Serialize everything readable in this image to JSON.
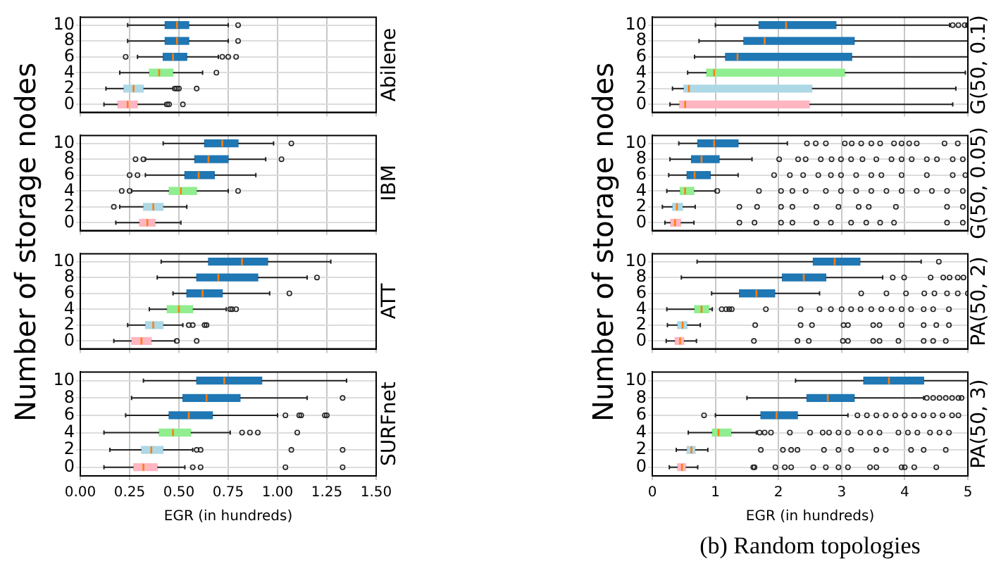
{
  "chart_data": [
    {
      "type": "box",
      "orientation": "horizontal",
      "title": "Abilene",
      "ylabel": "Number of storage nodes",
      "categories": [
        "10",
        "8",
        "6",
        "4",
        "2",
        "0"
      ],
      "colors": [
        "#1f77b4",
        "#1f77b4",
        "#1f77b4",
        "#90ee90",
        "#add8e6",
        "#ffb6c1"
      ],
      "xlim": [
        0,
        1.5
      ],
      "xticks": [
        {
          "value": 0,
          "label": null
        },
        {
          "value": 0.25,
          "label": null
        },
        {
          "value": 0.5,
          "label": null
        },
        {
          "value": 0.75,
          "label": null
        },
        {
          "value": 1,
          "label": null
        },
        {
          "value": 1.25,
          "label": null
        },
        {
          "value": 1.5,
          "label": null
        }
      ],
      "grid": true,
      "tick_labels": "y",
      "boxes": [
        {
          "low": 0.24,
          "q1": 0.43,
          "median": 0.49,
          "q3": 0.55,
          "high": 0.75,
          "outliers": [
            0.8
          ]
        },
        {
          "low": 0.24,
          "q1": 0.43,
          "median": 0.49,
          "q3": 0.55,
          "high": 0.75,
          "outliers": [
            0.8
          ]
        },
        {
          "low": 0.29,
          "q1": 0.42,
          "median": 0.47,
          "q3": 0.54,
          "high": 0.7,
          "outliers": [
            0.23,
            0.72,
            0.75,
            0.79
          ]
        },
        {
          "low": 0.2,
          "q1": 0.35,
          "median": 0.4,
          "q3": 0.47,
          "high": 0.62,
          "outliers": [
            0.69
          ]
        },
        {
          "low": 0.13,
          "q1": 0.22,
          "median": 0.27,
          "q3": 0.32,
          "high": 0.47,
          "outliers": [
            0.48,
            0.49,
            0.5,
            0.59
          ]
        },
        {
          "low": 0.12,
          "q1": 0.19,
          "median": 0.24,
          "q3": 0.29,
          "high": 0.43,
          "outliers": [
            0.44,
            0.45,
            0.52
          ]
        }
      ]
    },
    {
      "type": "box",
      "orientation": "horizontal",
      "title": "IBM",
      "categories": [
        "10",
        "8",
        "6",
        "4",
        "2",
        "0"
      ],
      "colors": [
        "#1f77b4",
        "#1f77b4",
        "#1f77b4",
        "#90ee90",
        "#add8e6",
        "#ffb6c1"
      ],
      "xlim": [
        0,
        1.5
      ],
      "xticks": [
        {
          "value": 0,
          "label": null
        },
        {
          "value": 0.25,
          "label": null
        },
        {
          "value": 0.5,
          "label": null
        },
        {
          "value": 0.75,
          "label": null
        },
        {
          "value": 1,
          "label": null
        },
        {
          "value": 1.25,
          "label": null
        },
        {
          "value": 1.5,
          "label": null
        }
      ],
      "grid": true,
      "tick_labels": "y",
      "boxes": [
        {
          "low": 0.42,
          "q1": 0.63,
          "median": 0.72,
          "q3": 0.8,
          "high": 0.98,
          "outliers": [
            1.07
          ]
        },
        {
          "low": 0.33,
          "q1": 0.58,
          "median": 0.65,
          "q3": 0.75,
          "high": 0.94,
          "outliers": [
            0.28,
            0.32,
            1.02
          ]
        },
        {
          "low": 0.33,
          "q1": 0.53,
          "median": 0.6,
          "q3": 0.68,
          "high": 0.89,
          "outliers": [
            0.25,
            0.29
          ]
        },
        {
          "low": 0.26,
          "q1": 0.45,
          "median": 0.51,
          "q3": 0.59,
          "high": 0.75,
          "outliers": [
            0.21,
            0.25,
            0.8
          ]
        },
        {
          "low": 0.2,
          "q1": 0.32,
          "median": 0.37,
          "q3": 0.42,
          "high": 0.54,
          "outliers": [
            0.17
          ]
        },
        {
          "low": 0.18,
          "q1": 0.3,
          "median": 0.34,
          "q3": 0.38,
          "high": 0.51
        }
      ]
    },
    {
      "type": "box",
      "orientation": "horizontal",
      "title": "ATT",
      "categories": [
        "10",
        "8",
        "6",
        "4",
        "2",
        "0"
      ],
      "colors": [
        "#1f77b4",
        "#1f77b4",
        "#1f77b4",
        "#90ee90",
        "#add8e6",
        "#ffb6c1"
      ],
      "xlim": [
        0,
        1.5
      ],
      "xticks": [
        {
          "value": 0,
          "label": null
        },
        {
          "value": 0.25,
          "label": null
        },
        {
          "value": 0.5,
          "label": null
        },
        {
          "value": 0.75,
          "label": null
        },
        {
          "value": 1,
          "label": null
        },
        {
          "value": 1.25,
          "label": null
        },
        {
          "value": 1.5,
          "label": null
        }
      ],
      "grid": true,
      "tick_labels": "y",
      "boxes": [
        {
          "low": 0.41,
          "q1": 0.65,
          "median": 0.82,
          "q3": 0.95,
          "high": 1.27
        },
        {
          "low": 0.39,
          "q1": 0.59,
          "median": 0.7,
          "q3": 0.9,
          "high": 1.15,
          "outliers": [
            1.2
          ]
        },
        {
          "low": 0.47,
          "q1": 0.54,
          "median": 0.62,
          "q3": 0.72,
          "high": 0.96,
          "outliers": [
            1.06
          ]
        },
        {
          "low": 0.35,
          "q1": 0.44,
          "median": 0.5,
          "q3": 0.57,
          "high": 0.74,
          "outliers": [
            0.76,
            0.77,
            0.79
          ]
        },
        {
          "low": 0.24,
          "q1": 0.33,
          "median": 0.37,
          "q3": 0.42,
          "high": 0.52,
          "outliers": [
            0.55,
            0.57,
            0.63,
            0.64
          ]
        },
        {
          "low": 0.17,
          "q1": 0.26,
          "median": 0.31,
          "q3": 0.36,
          "high": 0.48,
          "outliers": [
            0.49,
            0.59
          ]
        }
      ]
    },
    {
      "type": "box",
      "orientation": "horizontal",
      "title": "SURFnet",
      "xlabel": "EGR (in hundreds)",
      "categories": [
        "10",
        "8",
        "6",
        "4",
        "2",
        "0"
      ],
      "colors": [
        "#1f77b4",
        "#1f77b4",
        "#1f77b4",
        "#90ee90",
        "#add8e6",
        "#ffb6c1"
      ],
      "xlim": [
        0,
        1.5
      ],
      "xticks": [
        {
          "value": 0,
          "label": "0.00"
        },
        {
          "value": 0.25,
          "label": "0.25"
        },
        {
          "value": 0.5,
          "label": "0.50"
        },
        {
          "value": 0.75,
          "label": "0.75"
        },
        {
          "value": 1,
          "label": "1.00"
        },
        {
          "value": 1.25,
          "label": "1.25"
        },
        {
          "value": 1.5,
          "label": "1.50"
        }
      ],
      "grid": true,
      "boxes": [
        {
          "low": 0.32,
          "q1": 0.59,
          "median": 0.73,
          "q3": 0.92,
          "high": 1.35
        },
        {
          "low": 0.26,
          "q1": 0.52,
          "median": 0.64,
          "q3": 0.81,
          "high": 1.15,
          "outliers": [
            1.33
          ]
        },
        {
          "low": 0.23,
          "q1": 0.45,
          "median": 0.55,
          "q3": 0.67,
          "high": 1.0,
          "outliers": [
            1.04,
            1.11,
            1.12,
            1.24,
            1.25
          ]
        },
        {
          "low": 0.12,
          "q1": 0.4,
          "median": 0.47,
          "q3": 0.56,
          "high": 0.76,
          "outliers": [
            0.82,
            0.86,
            0.9,
            1.1
          ]
        },
        {
          "low": 0.15,
          "q1": 0.31,
          "median": 0.36,
          "q3": 0.42,
          "high": 0.57,
          "outliers": [
            0.59,
            0.61,
            1.07,
            1.33
          ]
        },
        {
          "low": 0.12,
          "q1": 0.27,
          "median": 0.32,
          "q3": 0.39,
          "high": 0.53,
          "outliers": [
            0.57,
            0.61,
            1.04,
            1.33
          ]
        }
      ]
    },
    {
      "type": "box",
      "orientation": "horizontal",
      "title": "G(50, 0.1)",
      "ylabel": "Number of storage nodes",
      "categories": [
        "10",
        "8",
        "6",
        "4",
        "2",
        "0"
      ],
      "colors": [
        "#1f77b4",
        "#1f77b4",
        "#1f77b4",
        "#90ee90",
        "#add8e6",
        "#ffb6c1"
      ],
      "xlim": [
        0,
        5
      ],
      "xticks": [
        0,
        1,
        2,
        3,
        4,
        5
      ],
      "grid": true,
      "tick_labels": "y",
      "boxes": [
        {
          "low": 1.0,
          "q1": 1.69,
          "median": 2.12,
          "q3": 2.91,
          "high": 4.71,
          "outliers": [
            4.76,
            4.85,
            4.95,
            5.0
          ]
        },
        {
          "low": 0.74,
          "q1": 1.45,
          "median": 1.78,
          "q3": 3.2,
          "high": 5.0
        },
        {
          "low": 0.67,
          "q1": 1.16,
          "median": 1.35,
          "q3": 3.16,
          "high": 5.0
        },
        {
          "low": 0.56,
          "q1": 0.86,
          "median": 0.98,
          "q3": 3.05,
          "high": 4.96
        },
        {
          "low": 0.32,
          "q1": 0.5,
          "median": 0.58,
          "q3": 2.53,
          "high": 4.81
        },
        {
          "low": 0.28,
          "q1": 0.43,
          "median": 0.52,
          "q3": 2.49,
          "high": 4.76
        }
      ]
    },
    {
      "type": "box",
      "orientation": "horizontal",
      "title": "G(50, 0.05)",
      "categories": [
        "10",
        "8",
        "6",
        "4",
        "2",
        "0"
      ],
      "colors": [
        "#1f77b4",
        "#1f77b4",
        "#1f77b4",
        "#90ee90",
        "#add8e6",
        "#ffb6c1"
      ],
      "xlim": [
        0,
        5
      ],
      "xticks": [
        0,
        1,
        2,
        3,
        4,
        5
      ],
      "grid": true,
      "tick_labels": "y",
      "boxes": [
        {
          "low": 0.42,
          "q1": 0.72,
          "median": 0.98,
          "q3": 1.36,
          "high": 2.14,
          "outliers": [
            2.45,
            2.59,
            2.75,
            3.05,
            3.16,
            3.31,
            3.47,
            3.61,
            3.83,
            3.95,
            4.07,
            4.19,
            4.63,
            4.84
          ]
        },
        {
          "low": 0.28,
          "q1": 0.62,
          "median": 0.78,
          "q3": 1.06,
          "high": 1.58,
          "outliers": [
            2.01,
            2.31,
            2.43,
            2.67,
            2.84,
            2.99,
            3.15,
            3.33,
            3.55,
            3.79,
            3.95,
            4.11,
            4.35,
            4.51,
            4.76,
            4.92
          ]
        },
        {
          "low": 0.26,
          "q1": 0.55,
          "median": 0.67,
          "q3": 0.92,
          "high": 1.36,
          "outliers": [
            1.93,
            2.18,
            2.39,
            2.63,
            2.83,
            2.99,
            3.23,
            3.47,
            3.63,
            3.95,
            4.35,
            4.76,
            4.96
          ]
        },
        {
          "low": 0.23,
          "q1": 0.44,
          "median": 0.52,
          "q3": 0.66,
          "high": 1.0,
          "outliers": [
            1.03,
            1.69,
            2.04,
            2.22,
            2.43,
            2.75,
            2.99,
            3.23,
            3.47,
            3.71,
            3.95,
            4.19,
            4.43,
            4.67,
            4.92
          ]
        },
        {
          "low": 0.16,
          "q1": 0.32,
          "median": 0.39,
          "q3": 0.48,
          "high": 0.68,
          "outliers": [
            1.38,
            1.66,
            2.04,
            2.22,
            2.6,
            2.95,
            3.27,
            3.43,
            3.86,
            4.67,
            4.92
          ]
        },
        {
          "low": 0.2,
          "q1": 0.29,
          "median": 0.36,
          "q3": 0.45,
          "high": 0.66,
          "outliers": [
            1.38,
            1.62,
            2.04,
            2.22,
            2.6,
            2.83,
            3.15,
            3.39,
            3.61,
            3.83,
            4.67,
            4.92
          ]
        }
      ]
    },
    {
      "type": "box",
      "orientation": "horizontal",
      "title": "PA(50, 2)",
      "categories": [
        "10",
        "8",
        "6",
        "4",
        "2",
        "0"
      ],
      "colors": [
        "#1f77b4",
        "#1f77b4",
        "#1f77b4",
        "#90ee90",
        "#add8e6",
        "#ffb6c1"
      ],
      "xlim": [
        0,
        5
      ],
      "xticks": [
        0,
        1,
        2,
        3,
        4,
        5
      ],
      "grid": true,
      "tick_labels": "y",
      "boxes": [
        {
          "low": 0.71,
          "q1": 2.55,
          "median": 2.89,
          "q3": 3.29,
          "high": 4.26,
          "outliers": [
            4.54
          ]
        },
        {
          "low": 0.46,
          "q1": 2.06,
          "median": 2.4,
          "q3": 2.75,
          "high": 3.65,
          "outliers": [
            3.81,
            3.99,
            4.41,
            4.61,
            4.71,
            4.84,
            4.93
          ]
        },
        {
          "low": 0.94,
          "q1": 1.38,
          "median": 1.65,
          "q3": 1.94,
          "high": 2.65,
          "outliers": [
            3.31,
            3.71,
            4.02,
            4.31,
            4.47,
            4.67,
            4.84,
            5.0
          ]
        },
        {
          "low": 0.23,
          "q1": 0.67,
          "median": 0.78,
          "q3": 0.9,
          "high": 0.95,
          "outliers": [
            1.1,
            1.17,
            1.22,
            1.26,
            1.8,
            2.35,
            2.65,
            2.83,
            3.0,
            3.15,
            3.3,
            3.47,
            3.63,
            3.79,
            3.95,
            4.1,
            4.3,
            4.45,
            4.7
          ]
        },
        {
          "low": 0.24,
          "q1": 0.4,
          "median": 0.48,
          "q3": 0.55,
          "high": 0.76,
          "outliers": [
            1.63,
            2.35,
            2.53,
            3.03,
            3.1,
            3.5,
            3.6,
            3.95,
            4.3,
            4.5,
            4.7
          ]
        },
        {
          "low": 0.22,
          "q1": 0.36,
          "median": 0.44,
          "q3": 0.5,
          "high": 0.7,
          "outliers": [
            1.61,
            2.3,
            2.48,
            3.02,
            3.1,
            3.5,
            3.6,
            3.9,
            4.3,
            4.45,
            4.65
          ]
        }
      ]
    },
    {
      "type": "box",
      "orientation": "horizontal",
      "title": "PA(50, 3)",
      "xlabel": "EGR (in hundreds)",
      "annotations": [
        "(b) Random topologies"
      ],
      "categories": [
        "10",
        "8",
        "6",
        "4",
        "2",
        "0"
      ],
      "colors": [
        "#1f77b4",
        "#1f77b4",
        "#1f77b4",
        "#90ee90",
        "#add8e6",
        "#ffb6c1"
      ],
      "xlim": [
        0,
        5
      ],
      "xticks": [
        0,
        1,
        2,
        3,
        4,
        5
      ],
      "grid": true,
      "boxes": [
        {
          "low": 2.27,
          "q1": 3.35,
          "median": 3.75,
          "q3": 4.3,
          "high": 5.0
        },
        {
          "low": 1.5,
          "q1": 2.45,
          "median": 2.78,
          "q3": 3.2,
          "high": 4.3,
          "outliers": [
            4.35,
            4.45,
            4.55,
            4.65,
            4.75,
            4.85,
            4.9
          ]
        },
        {
          "low": 1.0,
          "q1": 1.72,
          "median": 1.97,
          "q3": 2.3,
          "high": 3.1,
          "outliers": [
            0.82,
            3.25,
            3.4,
            3.55,
            3.7,
            3.85,
            4.0,
            4.15,
            4.3,
            4.45,
            4.6,
            4.75,
            4.85
          ]
        },
        {
          "low": 0.57,
          "q1": 0.95,
          "median": 1.05,
          "q3": 1.25,
          "high": 1.65,
          "outliers": [
            1.7,
            1.78,
            1.88,
            2.18,
            2.5,
            2.7,
            2.8,
            2.95,
            3.1,
            3.3,
            3.45,
            3.6,
            3.9,
            4.05,
            4.2,
            4.4,
            4.55,
            4.7
          ]
        },
        {
          "low": 0.38,
          "q1": 0.55,
          "median": 0.62,
          "q3": 0.68,
          "high": 0.88,
          "outliers": [
            1.72,
            2.07,
            2.2,
            2.3,
            2.72,
            2.95,
            3.15,
            3.55,
            3.7,
            4.1,
            4.3,
            4.65
          ]
        },
        {
          "low": 0.27,
          "q1": 0.4,
          "median": 0.47,
          "q3": 0.53,
          "high": 0.72,
          "outliers": [
            1.6,
            1.62,
            1.95,
            2.1,
            2.2,
            2.55,
            2.75,
            2.95,
            3.1,
            3.45,
            3.55,
            3.95,
            4.0,
            4.15,
            4.5
          ]
        }
      ]
    }
  ]
}
